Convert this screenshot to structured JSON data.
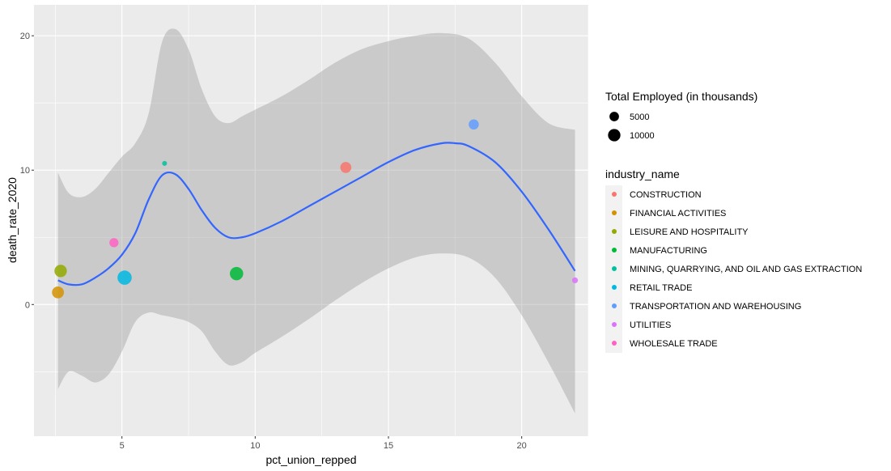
{
  "chart_data": {
    "type": "scatter",
    "xlabel": "pct_union_repped",
    "ylabel": "death_rate_2020",
    "xlim": [
      1.7,
      22.5
    ],
    "ylim": [
      -9.8,
      22.3
    ],
    "x_ticks": [
      5,
      10,
      15,
      20
    ],
    "y_ticks": [
      0,
      10,
      20
    ],
    "grid": true,
    "legend_position": "right",
    "size_legend": {
      "title": "Total Employed (in thousands)",
      "values": [
        5000,
        10000
      ]
    },
    "color_legend": {
      "title": "industry_name",
      "entries": [
        {
          "label": "CONSTRUCTION",
          "color": "#F8766D"
        },
        {
          "label": "FINANCIAL ACTIVITIES",
          "color": "#D39200"
        },
        {
          "label": "LEISURE AND HOSPITALITY",
          "color": "#93AA00"
        },
        {
          "label": "MANUFACTURING",
          "color": "#00BA38"
        },
        {
          "label": "MINING, QUARRYING, AND OIL AND GAS EXTRACTION",
          "color": "#00C19F"
        },
        {
          "label": "RETAIL TRADE",
          "color": "#00B9E3"
        },
        {
          "label": "TRANSPORTATION AND WAREHOUSING",
          "color": "#619CFF"
        },
        {
          "label": "UTILITIES",
          "color": "#DB72FB"
        },
        {
          "label": "WHOLESALE TRADE",
          "color": "#FF61C3"
        }
      ]
    },
    "points": [
      {
        "industry": "CONSTRUCTION",
        "x": 13.4,
        "y": 10.2,
        "employed": 7500
      },
      {
        "industry": "FINANCIAL ACTIVITIES",
        "x": 2.6,
        "y": 0.9,
        "employed": 9000
      },
      {
        "industry": "LEISURE AND HOSPITALITY",
        "x": 2.7,
        "y": 2.5,
        "employed": 10000
      },
      {
        "industry": "MANUFACTURING",
        "x": 9.3,
        "y": 2.3,
        "employed": 12000
      },
      {
        "industry": "MINING, QUARRYING, AND OIL AND GAS EXTRACTION",
        "x": 6.6,
        "y": 10.5,
        "employed": 600
      },
      {
        "industry": "RETAIL TRADE",
        "x": 5.1,
        "y": 2.0,
        "employed": 14000
      },
      {
        "industry": "TRANSPORTATION AND WAREHOUSING",
        "x": 18.2,
        "y": 13.4,
        "employed": 6000
      },
      {
        "industry": "UTILITIES",
        "x": 22.0,
        "y": 1.8,
        "employed": 1200
      },
      {
        "industry": "WHOLESALE TRADE",
        "x": 4.7,
        "y": 4.6,
        "employed": 4500
      }
    ],
    "smooth": {
      "method": "loess",
      "color": "#3366FF",
      "band_color": "#999999",
      "fit": [
        [
          2.6,
          1.8
        ],
        [
          3.0,
          1.5
        ],
        [
          3.5,
          1.5
        ],
        [
          4.0,
          2.0
        ],
        [
          4.5,
          2.7
        ],
        [
          5.0,
          3.7
        ],
        [
          5.5,
          5.3
        ],
        [
          6.0,
          7.8
        ],
        [
          6.5,
          9.6
        ],
        [
          7.0,
          9.7
        ],
        [
          7.5,
          8.6
        ],
        [
          8.0,
          7.0
        ],
        [
          8.5,
          5.7
        ],
        [
          9.0,
          5.0
        ],
        [
          9.5,
          5.0
        ],
        [
          10.0,
          5.3
        ],
        [
          11.0,
          6.2
        ],
        [
          12.0,
          7.3
        ],
        [
          13.0,
          8.4
        ],
        [
          14.0,
          9.5
        ],
        [
          15.0,
          10.6
        ],
        [
          16.0,
          11.5
        ],
        [
          17.0,
          12.0
        ],
        [
          17.5,
          12.0
        ],
        [
          18.0,
          11.8
        ],
        [
          19.0,
          10.6
        ],
        [
          20.0,
          8.4
        ],
        [
          21.0,
          5.6
        ],
        [
          22.0,
          2.5
        ]
      ],
      "upper": [
        [
          2.6,
          9.8
        ],
        [
          3.0,
          8.3
        ],
        [
          3.5,
          8.0
        ],
        [
          4.0,
          8.6
        ],
        [
          4.5,
          9.8
        ],
        [
          5.0,
          11.0
        ],
        [
          5.5,
          12.0
        ],
        [
          6.0,
          14.2
        ],
        [
          6.5,
          19.5
        ],
        [
          7.0,
          20.5
        ],
        [
          7.5,
          19.0
        ],
        [
          8.0,
          16.0
        ],
        [
          8.5,
          14.0
        ],
        [
          9.0,
          13.5
        ],
        [
          9.5,
          14.0
        ],
        [
          10.0,
          14.5
        ],
        [
          11.0,
          15.5
        ],
        [
          12.0,
          16.7
        ],
        [
          13.0,
          18.0
        ],
        [
          14.0,
          19.0
        ],
        [
          15.0,
          19.6
        ],
        [
          16.0,
          20.0
        ],
        [
          17.0,
          20.2
        ],
        [
          18.0,
          19.8
        ],
        [
          19.0,
          18.0
        ],
        [
          20.0,
          15.5
        ],
        [
          21.0,
          13.5
        ],
        [
          22.0,
          13.0
        ]
      ],
      "lower": [
        [
          2.6,
          -6.3
        ],
        [
          3.0,
          -5.0
        ],
        [
          3.5,
          -5.3
        ],
        [
          4.0,
          -5.8
        ],
        [
          4.5,
          -5.2
        ],
        [
          5.0,
          -3.5
        ],
        [
          5.5,
          -1.3
        ],
        [
          6.0,
          -0.6
        ],
        [
          6.5,
          -0.8
        ],
        [
          7.0,
          -1.0
        ],
        [
          7.5,
          -1.3
        ],
        [
          8.0,
          -2.0
        ],
        [
          8.5,
          -3.5
        ],
        [
          9.0,
          -4.5
        ],
        [
          9.5,
          -4.3
        ],
        [
          10.0,
          -3.6
        ],
        [
          11.0,
          -2.4
        ],
        [
          12.0,
          -1.1
        ],
        [
          13.0,
          0.3
        ],
        [
          14.0,
          1.6
        ],
        [
          15.0,
          2.7
        ],
        [
          16.0,
          3.5
        ],
        [
          17.0,
          3.8
        ],
        [
          18.0,
          3.5
        ],
        [
          19.0,
          2.0
        ],
        [
          20.0,
          -0.8
        ],
        [
          21.0,
          -4.3
        ],
        [
          22.0,
          -8.1
        ]
      ]
    }
  }
}
